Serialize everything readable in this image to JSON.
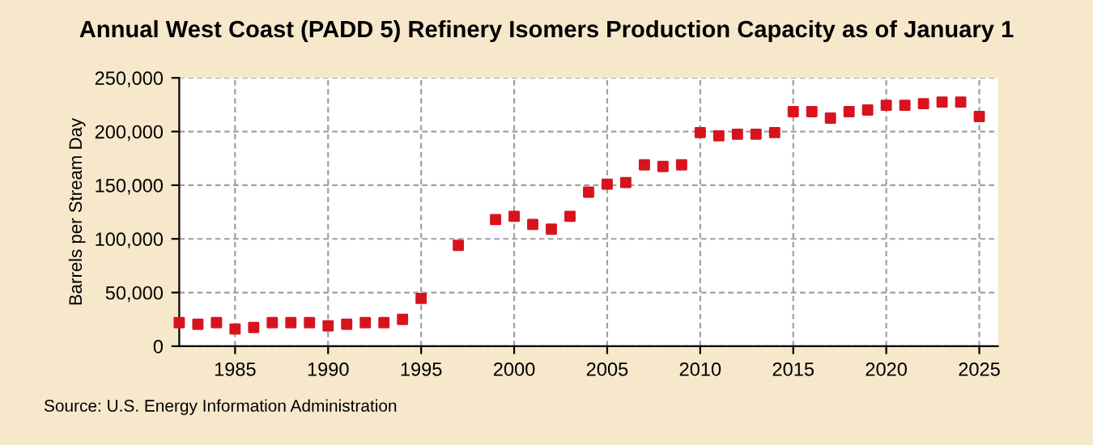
{
  "chart_data": {
    "type": "scatter",
    "title": "Annual West Coast (PADD 5) Refinery Isomers Production Capacity as of January 1",
    "ylabel": "Barrels per Stream Day",
    "x": [
      1982,
      1983,
      1984,
      1985,
      1986,
      1987,
      1988,
      1989,
      1990,
      1991,
      1992,
      1993,
      1994,
      1995,
      1997,
      1999,
      2000,
      2001,
      2002,
      2003,
      2004,
      2005,
      2006,
      2007,
      2008,
      2009,
      2010,
      2011,
      2012,
      2013,
      2014,
      2015,
      2016,
      2017,
      2018,
      2019,
      2020,
      2021,
      2022,
      2023,
      2024,
      2025
    ],
    "series": [
      {
        "color": "#d7141e",
        "values": [
          22000,
          20500,
          22000,
          16000,
          17500,
          22000,
          22000,
          22000,
          19000,
          20500,
          22000,
          22000,
          25000,
          44500,
          94000,
          118000,
          121000,
          113500,
          109000,
          121000,
          143500,
          151000,
          152500,
          169000,
          167500,
          169000,
          199000,
          196000,
          197500,
          197500,
          199000,
          218500,
          218500,
          212500,
          218500,
          220000,
          224500,
          224500,
          226000,
          227500,
          227500,
          214000
        ]
      }
    ],
    "xlim": [
      1982,
      2026
    ],
    "xticks": [
      1985,
      1990,
      1995,
      2000,
      2005,
      2010,
      2015,
      2020,
      2025
    ],
    "ylim": [
      0,
      250000
    ],
    "yticks": [
      {
        "value": 0,
        "label": "0"
      },
      {
        "value": 50000,
        "label": "50,000"
      },
      {
        "value": 100000,
        "label": "100,000"
      },
      {
        "value": 150000,
        "label": "150,000"
      },
      {
        "value": 200000,
        "label": "200,000"
      },
      {
        "value": 250000,
        "label": "250,000"
      }
    ],
    "grid": true,
    "marker": "square",
    "annotations": [
      "Source: U.S. Energy Information Administration"
    ]
  }
}
